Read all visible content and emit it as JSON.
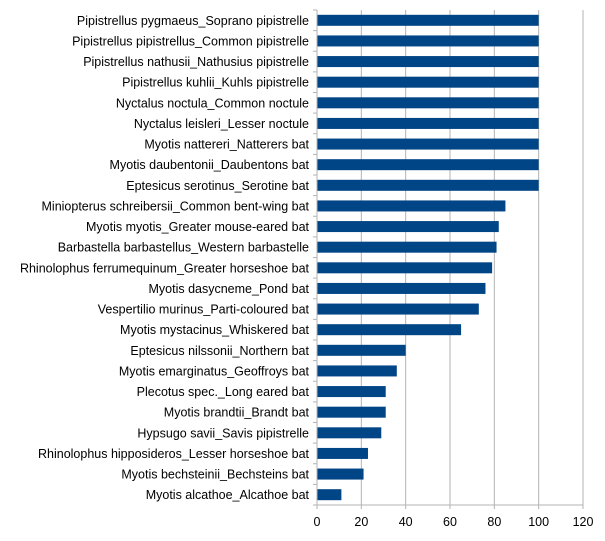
{
  "chart_data": {
    "type": "bar",
    "orientation": "horizontal",
    "categories": [
      "Pipistrellus pygmaeus_Soprano pipistrelle",
      "Pipistrellus pipistrellus_Common pipistrelle",
      "Pipistrellus nathusii_Nathusius pipistrelle",
      "Pipistrellus kuhlii_Kuhls pipistrelle",
      "Nyctalus noctula_Common noctule",
      "Nyctalus leisleri_Lesser noctule",
      "Myotis nattereri_Natterers bat",
      "Myotis daubentonii_Daubentons bat",
      "Eptesicus serotinus_Serotine bat",
      "Miniopterus schreibersii_Common bent-wing bat",
      "Myotis myotis_Greater mouse-eared bat",
      "Barbastella barbastellus_Western barbastelle",
      "Rhinolophus ferrumequinum_Greater horseshoe bat",
      "Myotis dasycneme_Pond bat",
      "Vespertilio murinus_Parti-coloured bat",
      "Myotis mystacinus_Whiskered bat",
      "Eptesicus nilssonii_Northern bat",
      "Myotis emarginatus_Geoffroys bat",
      "Plecotus spec._Long eared bat",
      "Myotis brandtii_Brandt bat",
      "Hypsugo savii_Savis pipistrelle",
      "Rhinolophus hipposideros_Lesser horseshoe bat",
      "Myotis bechsteinii_Bechsteins bat",
      "Myotis alcathoe_Alcathoe bat"
    ],
    "values": [
      100,
      100,
      100,
      100,
      100,
      100,
      100,
      100,
      100,
      85,
      82,
      81,
      79,
      76,
      73,
      65,
      40,
      36,
      31,
      31,
      29,
      23,
      21,
      11
    ],
    "xlim": [
      0,
      120
    ],
    "xticks": [
      0,
      20,
      40,
      60,
      80,
      100,
      120
    ],
    "title": "",
    "xlabel": "",
    "ylabel": "",
    "grid": "vertical",
    "legend": "none",
    "bar_color": "#004586",
    "grid_color": "#b3b3b3"
  }
}
